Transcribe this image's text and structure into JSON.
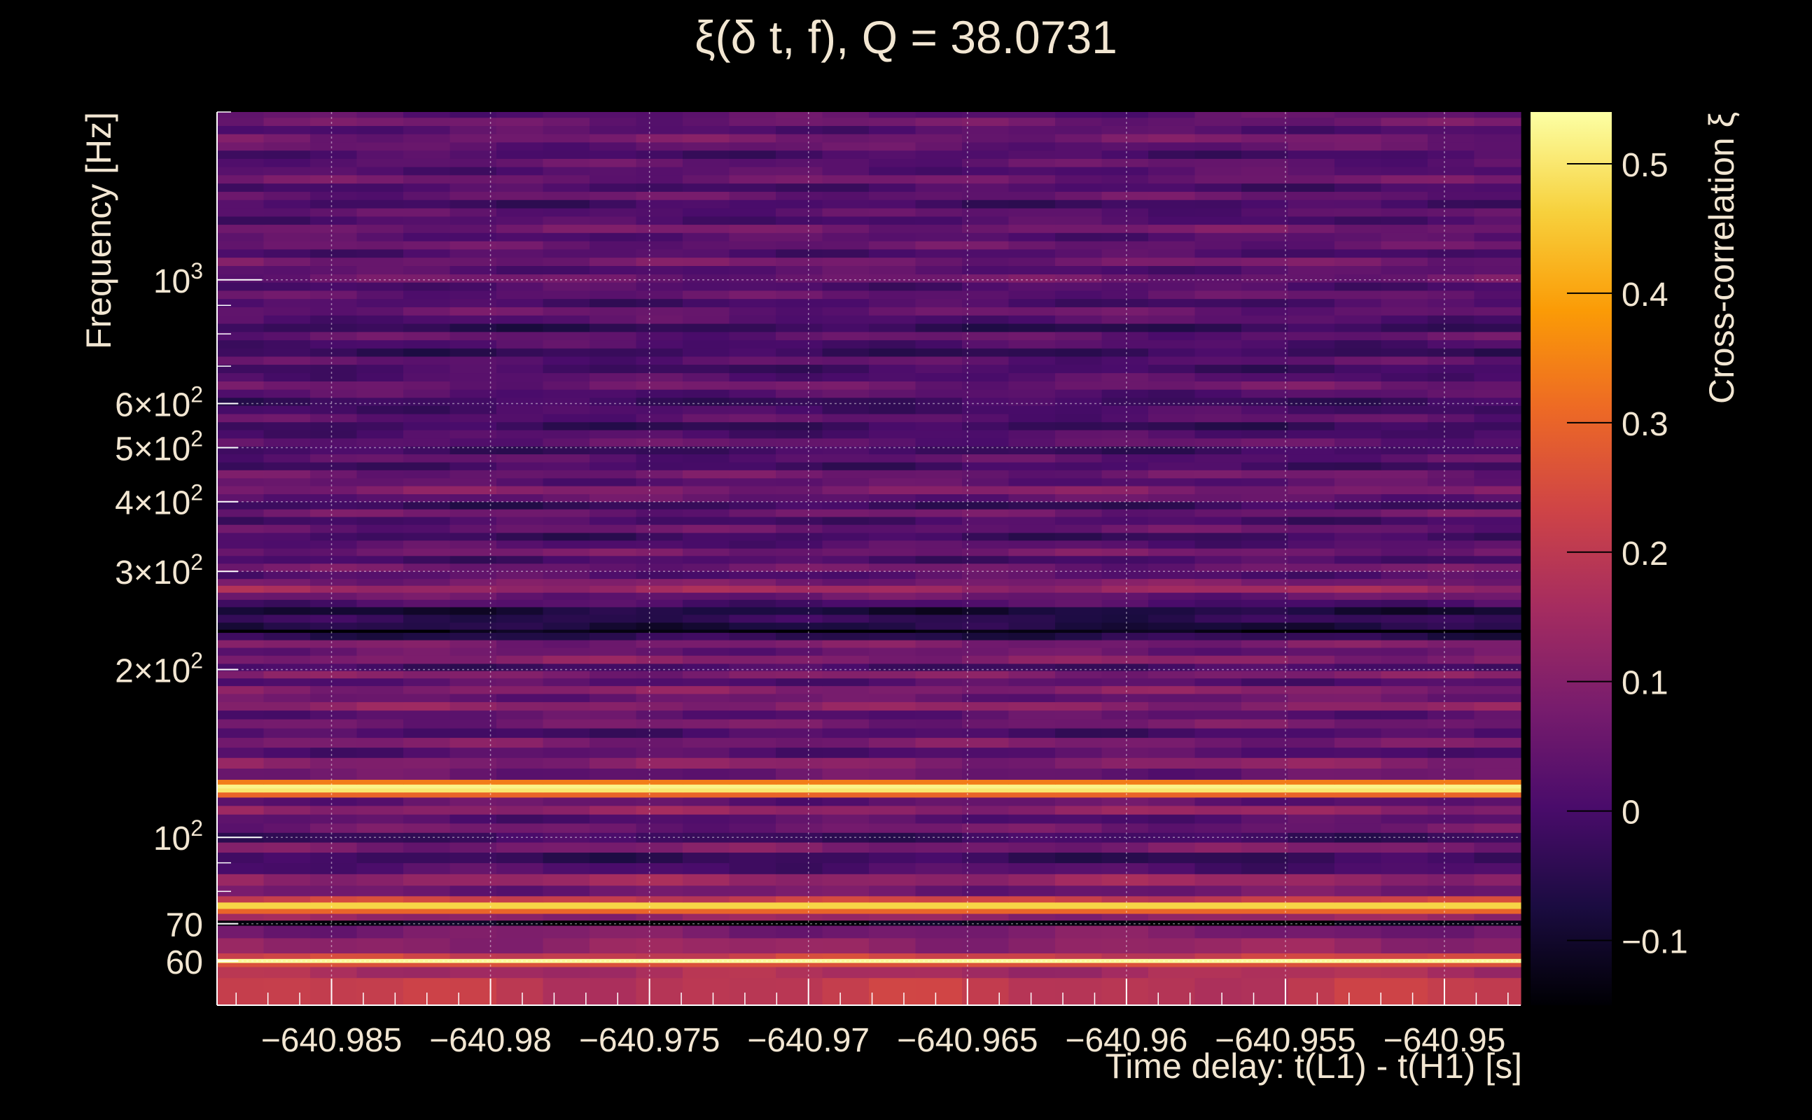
{
  "chart_data": {
    "type": "heatmap",
    "title": "ξ(δ t, f), Q = 38.0731",
    "xlabel": "Time delay: t(L1) - t(H1) [s]",
    "ylabel": "Frequency [Hz]",
    "colorbar_label": "Cross-correlation ξ",
    "x_scale": "linear",
    "y_scale": "log",
    "xlim": [
      -640.9886,
      -640.9476
    ],
    "ylim": [
      50,
      2000
    ],
    "zlim": [
      -0.15,
      0.54
    ],
    "grid": true,
    "colormap": [
      "#000004",
      "#1b0c41",
      "#4a0c6b",
      "#781c6d",
      "#a52c60",
      "#cf4446",
      "#ed6925",
      "#fb9b06",
      "#f7d13d",
      "#fcffa4"
    ],
    "colormap_note": "inferno-like",
    "x_ticks": [
      {
        "value": -640.985,
        "label": "−640.985"
      },
      {
        "value": -640.98,
        "label": "−640.98"
      },
      {
        "value": -640.975,
        "label": "−640.975"
      },
      {
        "value": -640.97,
        "label": "−640.97"
      },
      {
        "value": -640.965,
        "label": "−640.965"
      },
      {
        "value": -640.96,
        "label": "−640.96"
      },
      {
        "value": -640.955,
        "label": "−640.955"
      },
      {
        "value": -640.95,
        "label": "−640.95"
      }
    ],
    "y_ticks": [
      {
        "value": 60,
        "label": "60"
      },
      {
        "value": 70,
        "label": "70"
      },
      {
        "value": 100,
        "label": "10",
        "sup": "2"
      },
      {
        "value": 200,
        "label": "2×10",
        "sup": "2"
      },
      {
        "value": 300,
        "label": "3×10",
        "sup": "2"
      },
      {
        "value": 400,
        "label": "4×10",
        "sup": "2"
      },
      {
        "value": 500,
        "label": "5×10",
        "sup": "2"
      },
      {
        "value": 600,
        "label": "6×10",
        "sup": "2"
      },
      {
        "value": 1000,
        "label": "10",
        "sup": "3"
      }
    ],
    "colorbar_ticks": [
      {
        "value": -0.1,
        "label": "−0.1"
      },
      {
        "value": 0,
        "label": "0"
      },
      {
        "value": 0.1,
        "label": "0.1"
      },
      {
        "value": 0.2,
        "label": "0.2"
      },
      {
        "value": 0.3,
        "label": "0.3"
      },
      {
        "value": 0.4,
        "label": "0.4"
      },
      {
        "value": 0.5,
        "label": "0.5"
      }
    ],
    "frequency_bands": [
      {
        "f0": 50.0,
        "f1": 56.0,
        "xi": 0.2
      },
      {
        "f0": 56.0,
        "f1": 58.6,
        "xi": 0.16
      },
      {
        "f0": 58.6,
        "f1": 59.6,
        "xi": 0.26
      },
      {
        "f0": 59.6,
        "f1": 60.6,
        "xi": 0.53
      },
      {
        "f0": 60.6,
        "f1": 62.0,
        "xi": 0.22
      },
      {
        "f0": 62.0,
        "f1": 66.0,
        "xi": 0.12
      },
      {
        "f0": 66.0,
        "f1": 69.5,
        "xi": 0.08
      },
      {
        "f0": 69.5,
        "f1": 71.0,
        "xi": -0.14
      },
      {
        "f0": 71.0,
        "f1": 73.0,
        "xi": 0.12
      },
      {
        "f0": 73.0,
        "f1": 74.5,
        "xi": 0.3
      },
      {
        "f0": 74.5,
        "f1": 76.5,
        "xi": 0.47
      },
      {
        "f0": 76.5,
        "f1": 78.5,
        "xi": 0.22
      },
      {
        "f0": 78.5,
        "f1": 82.0,
        "xi": 0.06
      },
      {
        "f0": 82.0,
        "f1": 86.0,
        "xi": 0.13
      },
      {
        "f0": 86.0,
        "f1": 90.0,
        "xi": 0.01
      },
      {
        "f0": 90.0,
        "f1": 94.0,
        "xi": -0.03
      },
      {
        "f0": 94.0,
        "f1": 98.0,
        "xi": 0.08
      },
      {
        "f0": 98.0,
        "f1": 102.0,
        "xi": -0.02
      },
      {
        "f0": 102.0,
        "f1": 106.0,
        "xi": 0.06
      },
      {
        "f0": 106.0,
        "f1": 110.0,
        "xi": 0.02
      },
      {
        "f0": 110.0,
        "f1": 114.0,
        "xi": 0.12
      },
      {
        "f0": 114.0,
        "f1": 118.0,
        "xi": 0.04
      },
      {
        "f0": 118.0,
        "f1": 120.5,
        "xi": 0.3
      },
      {
        "f0": 120.5,
        "f1": 122.5,
        "xi": 0.5
      },
      {
        "f0": 122.5,
        "f1": 124.5,
        "xi": 0.52
      },
      {
        "f0": 124.5,
        "f1": 127.0,
        "xi": 0.34
      },
      {
        "f0": 127.0,
        "f1": 133.0,
        "xi": 0.05
      },
      {
        "f0": 133.0,
        "f1": 139.0,
        "xi": 0.1
      },
      {
        "f0": 139.0,
        "f1": 145.0,
        "xi": 0.02
      },
      {
        "f0": 145.0,
        "f1": 151.0,
        "xi": 0.08
      },
      {
        "f0": 151.0,
        "f1": 157.0,
        "xi": 0.0
      },
      {
        "f0": 157.0,
        "f1": 163.0,
        "xi": 0.07
      },
      {
        "f0": 163.0,
        "f1": 169.0,
        "xi": 0.03
      },
      {
        "f0": 169.0,
        "f1": 175.0,
        "xi": 0.11
      },
      {
        "f0": 175.0,
        "f1": 181.0,
        "xi": 0.05
      },
      {
        "f0": 181.0,
        "f1": 187.0,
        "xi": 0.1
      },
      {
        "f0": 187.0,
        "f1": 193.0,
        "xi": 0.02
      },
      {
        "f0": 193.0,
        "f1": 199.0,
        "xi": 0.09
      },
      {
        "f0": 199.0,
        "f1": 205.0,
        "xi": -0.01
      },
      {
        "f0": 205.0,
        "f1": 212.0,
        "xi": 0.1
      },
      {
        "f0": 212.0,
        "f1": 219.0,
        "xi": 0.05
      },
      {
        "f0": 219.0,
        "f1": 226.0,
        "xi": 0.08
      },
      {
        "f0": 226.0,
        "f1": 233.0,
        "xi": -0.05
      },
      {
        "f0": 233.0,
        "f1": 236.0,
        "xi": -0.14
      },
      {
        "f0": 236.0,
        "f1": 243.0,
        "xi": -0.07
      },
      {
        "f0": 243.0,
        "f1": 251.0,
        "xi": -0.04
      },
      {
        "f0": 251.0,
        "f1": 259.0,
        "xi": -0.08
      },
      {
        "f0": 259.0,
        "f1": 267.0,
        "xi": 0.01
      },
      {
        "f0": 267.0,
        "f1": 275.0,
        "xi": 0.05
      },
      {
        "f0": 275.0,
        "f1": 283.0,
        "xi": 0.14
      },
      {
        "f0": 283.0,
        "f1": 291.0,
        "xi": 0.08
      },
      {
        "f0": 291.0,
        "f1": 300.0,
        "xi": 0.02
      },
      {
        "f0": 300.0,
        "f1": 310.0,
        "xi": 0.06
      },
      {
        "f0": 310.0,
        "f1": 320.0,
        "xi": 0.0
      },
      {
        "f0": 320.0,
        "f1": 330.0,
        "xi": 0.07
      },
      {
        "f0": 330.0,
        "f1": 341.0,
        "xi": 0.02
      },
      {
        "f0": 341.0,
        "f1": 352.0,
        "xi": -0.02
      },
      {
        "f0": 352.0,
        "f1": 364.0,
        "xi": 0.05
      },
      {
        "f0": 364.0,
        "f1": 376.0,
        "xi": 0.0
      },
      {
        "f0": 376.0,
        "f1": 388.0,
        "xi": 0.06
      },
      {
        "f0": 388.0,
        "f1": 400.0,
        "xi": -0.03
      },
      {
        "f0": 400.0,
        "f1": 413.0,
        "xi": 0.04
      },
      {
        "f0": 413.0,
        "f1": 427.0,
        "xi": 0.09
      },
      {
        "f0": 427.0,
        "f1": 441.0,
        "xi": 0.03
      },
      {
        "f0": 441.0,
        "f1": 456.0,
        "xi": 0.06
      },
      {
        "f0": 456.0,
        "f1": 471.0,
        "xi": -0.01
      },
      {
        "f0": 471.0,
        "f1": 487.0,
        "xi": 0.03
      },
      {
        "f0": 487.0,
        "f1": 503.0,
        "xi": -0.02
      },
      {
        "f0": 503.0,
        "f1": 520.0,
        "xi": 0.04
      },
      {
        "f0": 520.0,
        "f1": 538.0,
        "xi": 0.01
      },
      {
        "f0": 538.0,
        "f1": 556.0,
        "xi": -0.03
      },
      {
        "f0": 556.0,
        "f1": 575.0,
        "xi": 0.03
      },
      {
        "f0": 575.0,
        "f1": 595.0,
        "xi": 0.0
      },
      {
        "f0": 595.0,
        "f1": 615.0,
        "xi": -0.02
      },
      {
        "f0": 615.0,
        "f1": 636.0,
        "xi": 0.02
      },
      {
        "f0": 636.0,
        "f1": 658.0,
        "xi": 0.06
      },
      {
        "f0": 658.0,
        "f1": 681.0,
        "xi": 0.02
      },
      {
        "f0": 681.0,
        "f1": 705.0,
        "xi": -0.01
      },
      {
        "f0": 705.0,
        "f1": 729.0,
        "xi": 0.03
      },
      {
        "f0": 729.0,
        "f1": 754.0,
        "xi": -0.03
      },
      {
        "f0": 754.0,
        "f1": 780.0,
        "xi": 0.01
      },
      {
        "f0": 780.0,
        "f1": 807.0,
        "xi": 0.04
      },
      {
        "f0": 807.0,
        "f1": 835.0,
        "xi": -0.04
      },
      {
        "f0": 835.0,
        "f1": 864.0,
        "xi": 0.02
      },
      {
        "f0": 864.0,
        "f1": 894.0,
        "xi": 0.05
      },
      {
        "f0": 894.0,
        "f1": 925.0,
        "xi": 0.0
      },
      {
        "f0": 925.0,
        "f1": 957.0,
        "xi": 0.04
      },
      {
        "f0": 957.0,
        "f1": 990.0,
        "xi": 0.01
      },
      {
        "f0": 990.0,
        "f1": 1024.0,
        "xi": 0.06
      },
      {
        "f0": 1024.0,
        "f1": 1060.0,
        "xi": 0.02
      },
      {
        "f0": 1060.0,
        "f1": 1097.0,
        "xi": 0.07
      },
      {
        "f0": 1097.0,
        "f1": 1135.0,
        "xi": 0.01
      },
      {
        "f0": 1135.0,
        "f1": 1174.0,
        "xi": 0.05
      },
      {
        "f0": 1174.0,
        "f1": 1215.0,
        "xi": 0.02
      },
      {
        "f0": 1215.0,
        "f1": 1257.0,
        "xi": 0.07
      },
      {
        "f0": 1257.0,
        "f1": 1300.0,
        "xi": 0.01
      },
      {
        "f0": 1300.0,
        "f1": 1345.0,
        "xi": 0.03
      },
      {
        "f0": 1345.0,
        "f1": 1392.0,
        "xi": -0.01
      },
      {
        "f0": 1392.0,
        "f1": 1440.0,
        "xi": 0.05
      },
      {
        "f0": 1440.0,
        "f1": 1490.0,
        "xi": 0.0
      },
      {
        "f0": 1490.0,
        "f1": 1542.0,
        "xi": 0.06
      },
      {
        "f0": 1542.0,
        "f1": 1595.0,
        "xi": 0.02
      },
      {
        "f0": 1595.0,
        "f1": 1650.0,
        "xi": 0.04
      },
      {
        "f0": 1650.0,
        "f1": 1707.0,
        "xi": 0.0
      },
      {
        "f0": 1707.0,
        "f1": 1766.0,
        "xi": 0.04
      },
      {
        "f0": 1766.0,
        "f1": 1827.0,
        "xi": 0.07
      },
      {
        "f0": 1827.0,
        "f1": 1890.0,
        "xi": 0.02
      },
      {
        "f0": 1890.0,
        "f1": 1955.0,
        "xi": 0.06
      },
      {
        "f0": 1955.0,
        "f1": 2000.0,
        "xi": 0.03
      }
    ]
  }
}
